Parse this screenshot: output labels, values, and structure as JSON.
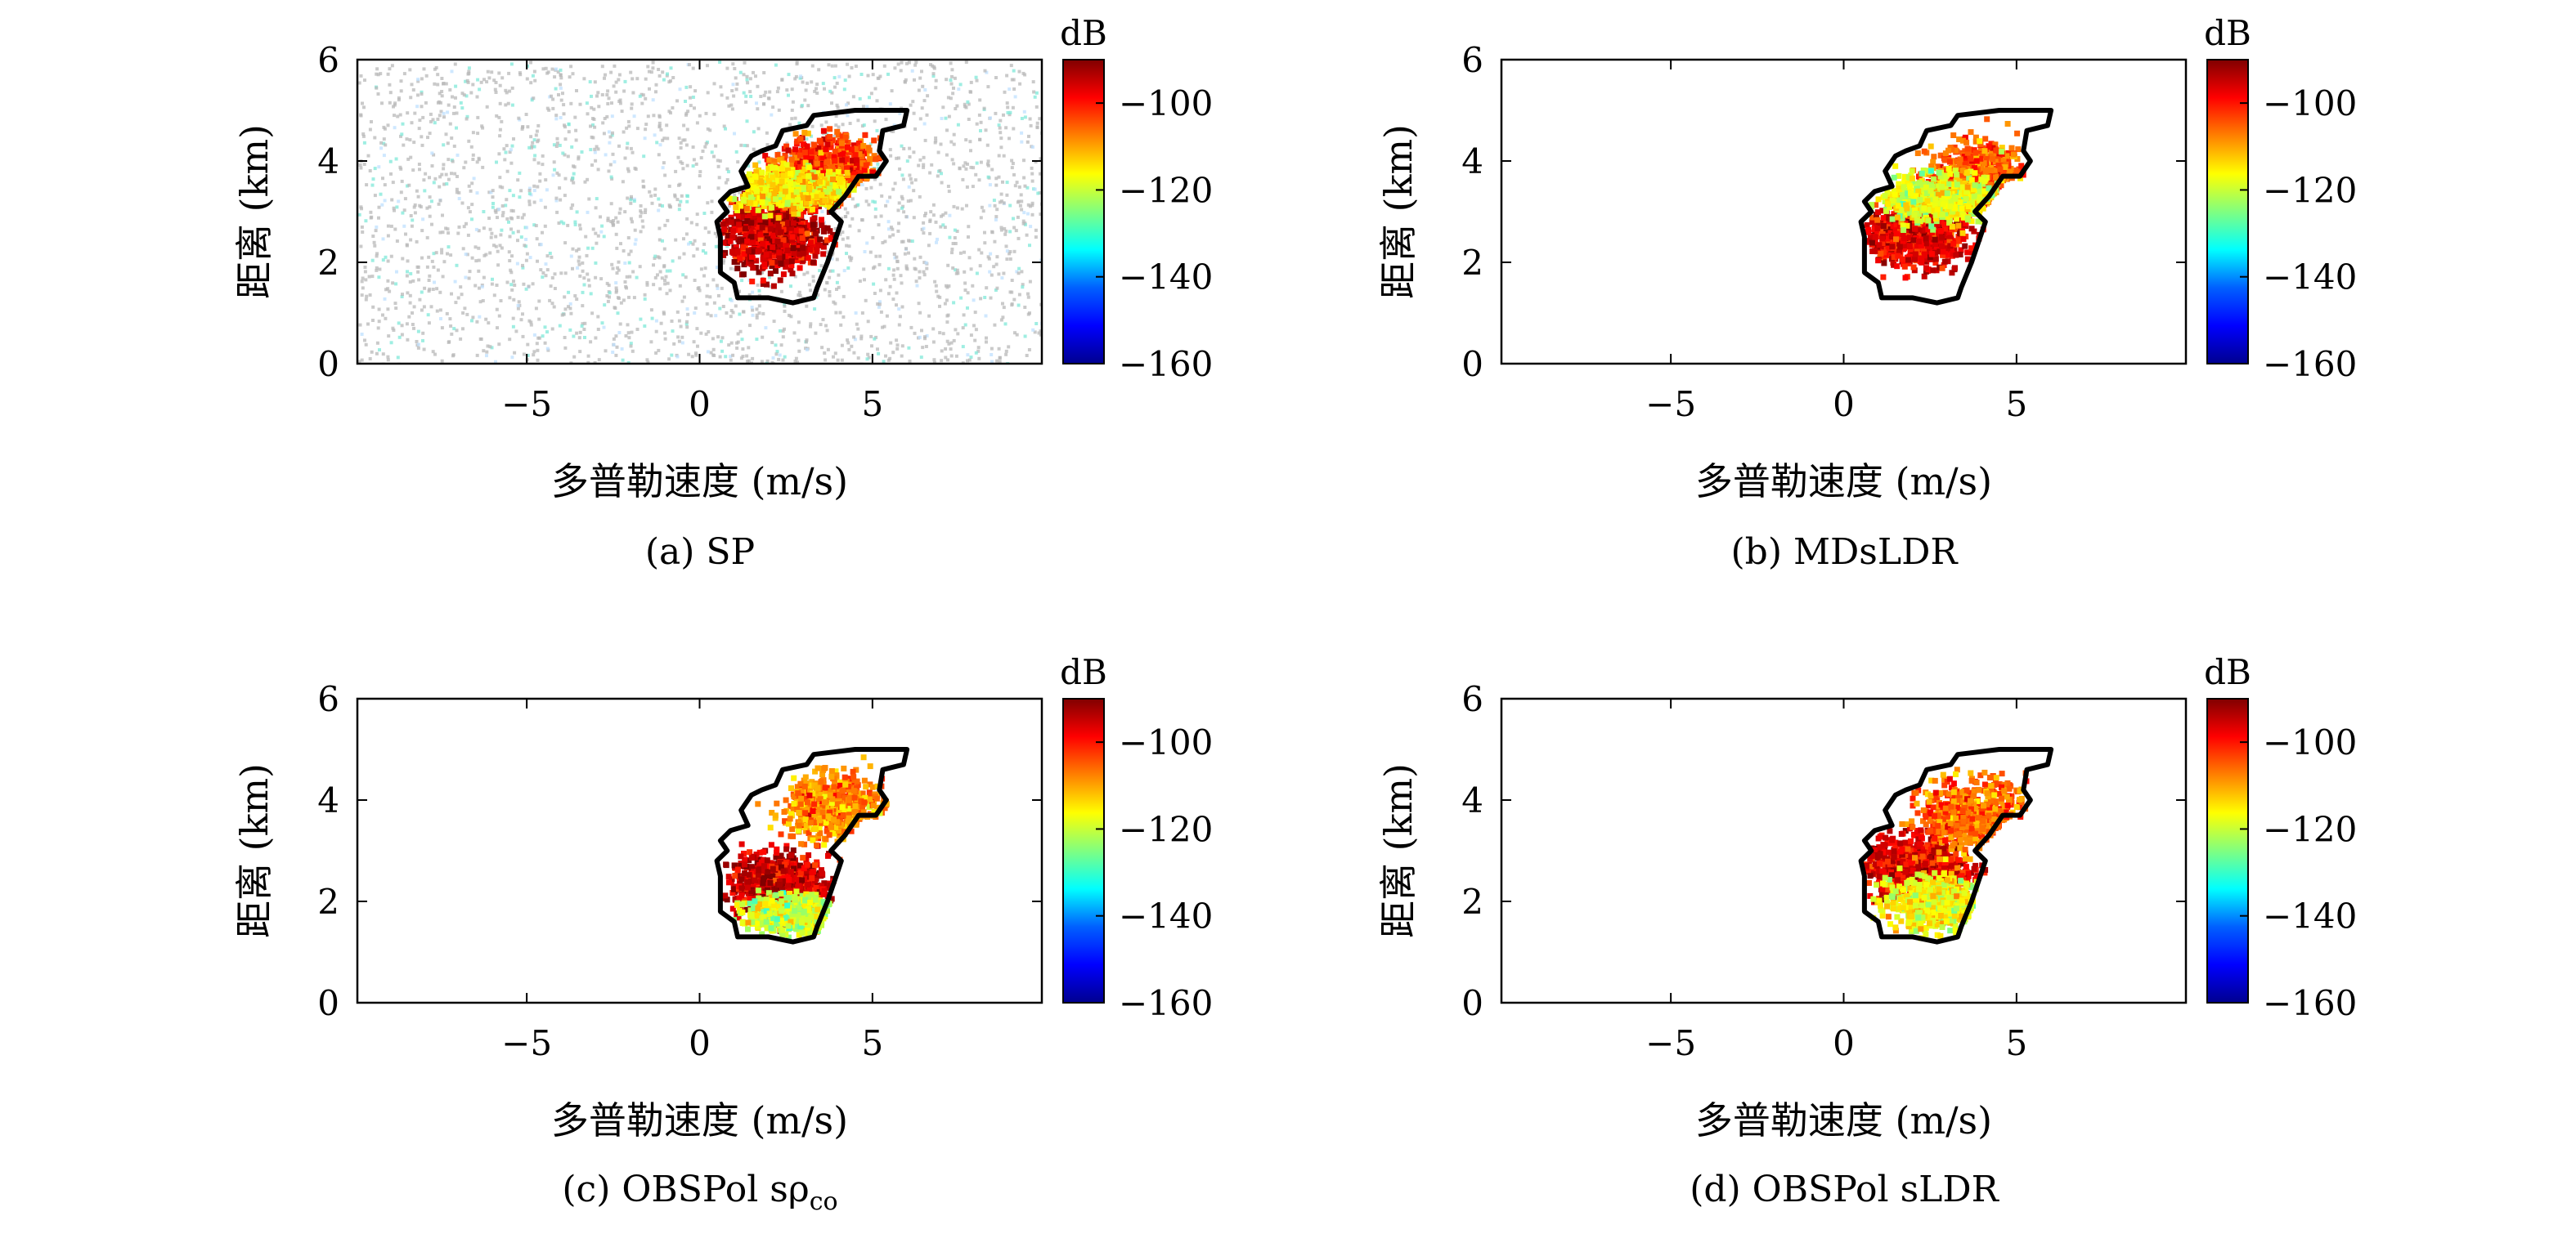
{
  "figure": {
    "colorbar": {
      "unit": "dB",
      "range": [
        -160,
        -90
      ],
      "ticks": [
        -160,
        -140,
        -120,
        -100
      ],
      "tick_labels": [
        "−160",
        "−140",
        "−120",
        "−100"
      ],
      "colormap": [
        "#00008f",
        "#0000ff",
        "#0080ff",
        "#00ffff",
        "#80ff80",
        "#ffff00",
        "#ff8000",
        "#ff0000",
        "#800000"
      ]
    },
    "panels_note": "four Doppler-range spectrum panels sharing axes"
  },
  "chart_data": [
    {
      "type": "heatmap",
      "caption": "(a) SP",
      "xlabel": "多普勒速度 (m/s)",
      "ylabel": "距离 (km)",
      "xlim": [
        -9.9,
        9.9
      ],
      "ylim": [
        0,
        6
      ],
      "xticks": [
        -5,
        0,
        5
      ],
      "xtick_labels": [
        "−5",
        "0",
        "5"
      ],
      "yticks": [
        0,
        2,
        4,
        6
      ],
      "ytick_labels": [
        "0",
        "2",
        "4",
        "6"
      ],
      "colorbar_unit": "dB",
      "background_noise": true,
      "contour": [
        [
          0.6,
          2.5
        ],
        [
          0.5,
          2.8
        ],
        [
          0.8,
          3.0
        ],
        [
          0.6,
          3.2
        ],
        [
          0.9,
          3.4
        ],
        [
          1.4,
          3.5
        ],
        [
          1.2,
          3.8
        ],
        [
          1.5,
          4.1
        ],
        [
          1.8,
          4.2
        ],
        [
          2.2,
          4.3
        ],
        [
          2.4,
          4.6
        ],
        [
          3.1,
          4.7
        ],
        [
          3.3,
          4.9
        ],
        [
          4.5,
          5.0
        ],
        [
          6.0,
          5.0
        ],
        [
          5.9,
          4.7
        ],
        [
          5.3,
          4.6
        ],
        [
          5.2,
          4.2
        ],
        [
          5.4,
          4.0
        ],
        [
          5.1,
          3.7
        ],
        [
          4.6,
          3.7
        ],
        [
          4.2,
          3.3
        ],
        [
          3.8,
          3.0
        ],
        [
          4.1,
          2.8
        ],
        [
          3.9,
          2.4
        ],
        [
          3.7,
          2.0
        ],
        [
          3.4,
          1.5
        ],
        [
          3.3,
          1.3
        ],
        [
          2.7,
          1.2
        ],
        [
          2.0,
          1.3
        ],
        [
          1.1,
          1.3
        ],
        [
          1.0,
          1.6
        ],
        [
          0.6,
          1.8
        ],
        [
          0.6,
          2.2
        ]
      ],
      "regions": [
        {
          "center": [
            2.0,
            2.6
          ],
          "spread": [
            1.3,
            0.6
          ],
          "level": -95
        },
        {
          "center": [
            3.6,
            3.9
          ],
          "spread": [
            1.4,
            0.55
          ],
          "level": -103
        },
        {
          "center": [
            2.5,
            3.5
          ],
          "spread": [
            1.6,
            0.35
          ],
          "level": -115
        }
      ]
    },
    {
      "type": "heatmap",
      "caption": "(b) MDsLDR",
      "xlabel": "多普勒速度 (m/s)",
      "ylabel": "距离 (km)",
      "xlim": [
        -9.9,
        9.9
      ],
      "ylim": [
        0,
        6
      ],
      "xticks": [
        -5,
        0,
        5
      ],
      "xtick_labels": [
        "−5",
        "0",
        "5"
      ],
      "yticks": [
        0,
        2,
        4,
        6
      ],
      "ytick_labels": [
        "0",
        "2",
        "4",
        "6"
      ],
      "colorbar_unit": "dB",
      "background_noise": false,
      "contour": [
        [
          0.6,
          2.5
        ],
        [
          0.5,
          2.8
        ],
        [
          0.8,
          3.0
        ],
        [
          0.6,
          3.2
        ],
        [
          0.9,
          3.4
        ],
        [
          1.4,
          3.5
        ],
        [
          1.2,
          3.8
        ],
        [
          1.5,
          4.1
        ],
        [
          1.8,
          4.2
        ],
        [
          2.2,
          4.3
        ],
        [
          2.4,
          4.6
        ],
        [
          3.1,
          4.7
        ],
        [
          3.3,
          4.9
        ],
        [
          4.5,
          5.0
        ],
        [
          6.0,
          5.0
        ],
        [
          5.9,
          4.7
        ],
        [
          5.3,
          4.6
        ],
        [
          5.2,
          4.2
        ],
        [
          5.4,
          4.0
        ],
        [
          5.1,
          3.7
        ],
        [
          4.6,
          3.7
        ],
        [
          4.2,
          3.3
        ],
        [
          3.8,
          3.0
        ],
        [
          4.1,
          2.8
        ],
        [
          3.9,
          2.4
        ],
        [
          3.7,
          2.0
        ],
        [
          3.4,
          1.5
        ],
        [
          3.3,
          1.3
        ],
        [
          2.7,
          1.2
        ],
        [
          2.0,
          1.3
        ],
        [
          1.1,
          1.3
        ],
        [
          1.0,
          1.6
        ],
        [
          0.6,
          1.8
        ],
        [
          0.6,
          2.2
        ]
      ],
      "regions": [
        {
          "center": [
            2.0,
            2.6
          ],
          "spread": [
            1.3,
            0.55
          ],
          "level": -97
        },
        {
          "center": [
            3.8,
            3.7
          ],
          "spread": [
            1.3,
            0.6
          ],
          "level": -105
        },
        {
          "center": [
            2.8,
            3.3
          ],
          "spread": [
            1.6,
            0.4
          ],
          "level": -118
        }
      ]
    },
    {
      "type": "heatmap",
      "caption": "(c) OBSPol sρ",
      "caption_subscript": "co",
      "xlabel": "多普勒速度 (m/s)",
      "ylabel": "距离 (km)",
      "xlim": [
        -9.9,
        9.9
      ],
      "ylim": [
        0,
        6
      ],
      "xticks": [
        -5,
        0,
        5
      ],
      "xtick_labels": [
        "−5",
        "0",
        "5"
      ],
      "yticks": [
        0,
        2,
        4,
        6
      ],
      "ytick_labels": [
        "0",
        "2",
        "4",
        "6"
      ],
      "colorbar_unit": "dB",
      "background_noise": false,
      "contour": [
        [
          0.6,
          2.5
        ],
        [
          0.5,
          2.8
        ],
        [
          0.8,
          3.0
        ],
        [
          0.6,
          3.2
        ],
        [
          0.9,
          3.4
        ],
        [
          1.4,
          3.5
        ],
        [
          1.2,
          3.8
        ],
        [
          1.5,
          4.1
        ],
        [
          1.8,
          4.2
        ],
        [
          2.2,
          4.3
        ],
        [
          2.4,
          4.6
        ],
        [
          3.1,
          4.7
        ],
        [
          3.3,
          4.9
        ],
        [
          4.5,
          5.0
        ],
        [
          6.0,
          5.0
        ],
        [
          5.9,
          4.7
        ],
        [
          5.3,
          4.6
        ],
        [
          5.2,
          4.2
        ],
        [
          5.4,
          4.0
        ],
        [
          5.1,
          3.7
        ],
        [
          4.6,
          3.7
        ],
        [
          4.2,
          3.3
        ],
        [
          3.8,
          3.0
        ],
        [
          4.1,
          2.8
        ],
        [
          3.9,
          2.4
        ],
        [
          3.7,
          2.0
        ],
        [
          3.4,
          1.5
        ],
        [
          3.3,
          1.3
        ],
        [
          2.7,
          1.2
        ],
        [
          2.0,
          1.3
        ],
        [
          1.1,
          1.3
        ],
        [
          1.0,
          1.6
        ],
        [
          0.6,
          1.8
        ],
        [
          0.6,
          2.2
        ]
      ],
      "regions": [
        {
          "center": [
            2.2,
            2.4
          ],
          "spread": [
            1.3,
            0.5
          ],
          "level": -96
        },
        {
          "center": [
            3.8,
            3.9
          ],
          "spread": [
            1.3,
            0.55
          ],
          "level": -108
        },
        {
          "center": [
            2.6,
            1.8
          ],
          "spread": [
            1.2,
            0.3
          ],
          "level": -120
        }
      ]
    },
    {
      "type": "heatmap",
      "caption": "(d) OBSPol sLDR",
      "xlabel": "多普勒速度 (m/s)",
      "ylabel": "距离 (km)",
      "xlim": [
        -9.9,
        9.9
      ],
      "ylim": [
        0,
        6
      ],
      "xticks": [
        -5,
        0,
        5
      ],
      "xtick_labels": [
        "−5",
        "0",
        "5"
      ],
      "yticks": [
        0,
        2,
        4,
        6
      ],
      "ytick_labels": [
        "0",
        "2",
        "4",
        "6"
      ],
      "colorbar_unit": "dB",
      "background_noise": false,
      "contour": [
        [
          0.6,
          2.5
        ],
        [
          0.5,
          2.8
        ],
        [
          0.8,
          3.0
        ],
        [
          0.6,
          3.2
        ],
        [
          0.9,
          3.4
        ],
        [
          1.4,
          3.5
        ],
        [
          1.2,
          3.8
        ],
        [
          1.5,
          4.1
        ],
        [
          1.8,
          4.2
        ],
        [
          2.2,
          4.3
        ],
        [
          2.4,
          4.6
        ],
        [
          3.1,
          4.7
        ],
        [
          3.3,
          4.9
        ],
        [
          4.5,
          5.0
        ],
        [
          6.0,
          5.0
        ],
        [
          5.9,
          4.7
        ],
        [
          5.3,
          4.6
        ],
        [
          5.2,
          4.2
        ],
        [
          5.4,
          4.0
        ],
        [
          5.1,
          3.7
        ],
        [
          4.6,
          3.7
        ],
        [
          4.2,
          3.3
        ],
        [
          3.8,
          3.0
        ],
        [
          4.1,
          2.8
        ],
        [
          3.9,
          2.4
        ],
        [
          3.7,
          2.0
        ],
        [
          3.4,
          1.5
        ],
        [
          3.3,
          1.3
        ],
        [
          2.7,
          1.2
        ],
        [
          2.0,
          1.3
        ],
        [
          1.1,
          1.3
        ],
        [
          1.0,
          1.6
        ],
        [
          0.6,
          1.8
        ],
        [
          0.6,
          2.2
        ]
      ],
      "regions": [
        {
          "center": [
            2.1,
            2.7
          ],
          "spread": [
            1.4,
            0.55
          ],
          "level": -97
        },
        {
          "center": [
            3.7,
            3.8
          ],
          "spread": [
            1.4,
            0.6
          ],
          "level": -106
        },
        {
          "center": [
            2.6,
            2.0
          ],
          "spread": [
            1.3,
            0.45
          ],
          "level": -117
        }
      ]
    }
  ]
}
